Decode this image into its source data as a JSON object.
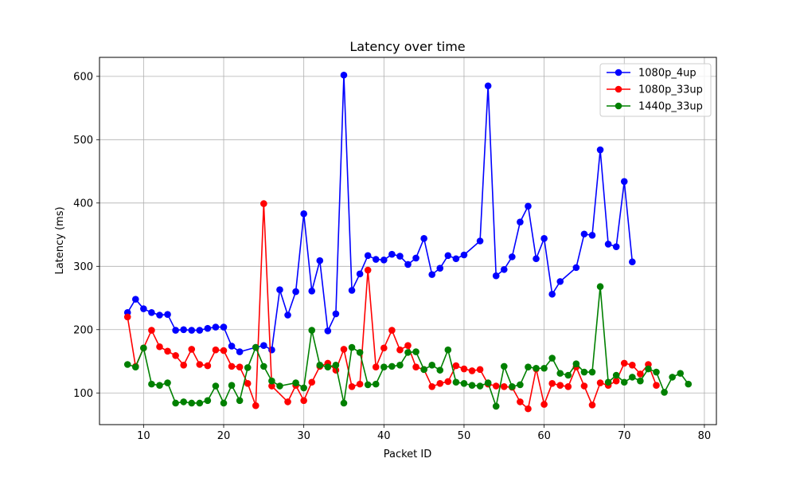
{
  "chart_data": {
    "type": "line",
    "title": "Latency over time",
    "xlabel": "Packet ID",
    "ylabel": "Latency (ms)",
    "xlim": [
      4.5,
      81.5
    ],
    "ylim": [
      50,
      630
    ],
    "xticks": [
      10,
      20,
      30,
      40,
      50,
      60,
      70,
      80
    ],
    "yticks": [
      100,
      200,
      300,
      400,
      500,
      600
    ],
    "grid": true,
    "legend_position": "top-right",
    "series": [
      {
        "name": "1080p_4up",
        "color": "#0000ff",
        "points": [
          [
            8,
            227
          ],
          [
            9,
            248
          ],
          [
            10,
            233
          ],
          [
            11,
            227
          ],
          [
            12,
            223
          ],
          [
            13,
            224
          ],
          [
            14,
            199
          ],
          [
            15,
            200
          ],
          [
            16,
            199
          ],
          [
            17,
            199
          ],
          [
            18,
            202
          ],
          [
            19,
            204
          ],
          [
            20,
            204
          ],
          [
            21,
            174
          ],
          [
            22,
            165
          ],
          [
            24,
            172
          ],
          [
            25,
            175
          ],
          [
            26,
            168
          ],
          [
            27,
            263
          ],
          [
            28,
            223
          ],
          [
            29,
            260
          ],
          [
            30,
            383
          ],
          [
            31,
            261
          ],
          [
            32,
            309
          ],
          [
            33,
            198
          ],
          [
            34,
            225
          ],
          [
            35,
            602
          ],
          [
            36,
            262
          ],
          [
            37,
            288
          ],
          [
            38,
            317
          ],
          [
            39,
            311
          ],
          [
            40,
            310
          ],
          [
            41,
            319
          ],
          [
            42,
            316
          ],
          [
            43,
            303
          ],
          [
            44,
            313
          ],
          [
            45,
            344
          ],
          [
            46,
            287
          ],
          [
            47,
            297
          ],
          [
            48,
            317
          ],
          [
            49,
            312
          ],
          [
            50,
            318
          ],
          [
            52,
            340
          ],
          [
            53,
            585
          ],
          [
            54,
            285
          ],
          [
            55,
            295
          ],
          [
            56,
            315
          ],
          [
            57,
            370
          ],
          [
            58,
            395
          ],
          [
            59,
            312
          ],
          [
            60,
            344
          ],
          [
            61,
            256
          ],
          [
            62,
            276
          ],
          [
            64,
            298
          ],
          [
            65,
            351
          ],
          [
            66,
            349
          ],
          [
            67,
            484
          ],
          [
            68,
            335
          ],
          [
            69,
            331
          ],
          [
            70,
            434
          ],
          [
            71,
            307
          ]
        ]
      },
      {
        "name": "1080p_33up",
        "color": "#ff0000",
        "points": [
          [
            8,
            220
          ],
          [
            9,
            142
          ],
          [
            10,
            171
          ],
          [
            11,
            199
          ],
          [
            12,
            173
          ],
          [
            13,
            166
          ],
          [
            14,
            159
          ],
          [
            15,
            144
          ],
          [
            16,
            169
          ],
          [
            17,
            145
          ],
          [
            18,
            143
          ],
          [
            19,
            168
          ],
          [
            20,
            167
          ],
          [
            21,
            142
          ],
          [
            22,
            141
          ],
          [
            23,
            115
          ],
          [
            24,
            80
          ],
          [
            25,
            399
          ],
          [
            26,
            111
          ],
          [
            28,
            86
          ],
          [
            29,
            112
          ],
          [
            30,
            88
          ],
          [
            31,
            117
          ],
          [
            32,
            142
          ],
          [
            33,
            147
          ],
          [
            34,
            136
          ],
          [
            35,
            169
          ],
          [
            36,
            110
          ],
          [
            37,
            114
          ],
          [
            38,
            294
          ],
          [
            39,
            141
          ],
          [
            40,
            171
          ],
          [
            41,
            199
          ],
          [
            42,
            168
          ],
          [
            43,
            175
          ],
          [
            44,
            141
          ],
          [
            45,
            137
          ],
          [
            46,
            110
          ],
          [
            47,
            115
          ],
          [
            48,
            118
          ],
          [
            49,
            143
          ],
          [
            50,
            138
          ],
          [
            51,
            135
          ],
          [
            52,
            137
          ],
          [
            53,
            114
          ],
          [
            54,
            111
          ],
          [
            55,
            110
          ],
          [
            56,
            109
          ],
          [
            57,
            86
          ],
          [
            58,
            75
          ],
          [
            59,
            138
          ],
          [
            60,
            82
          ],
          [
            61,
            115
          ],
          [
            62,
            112
          ],
          [
            63,
            110
          ],
          [
            64,
            141
          ],
          [
            65,
            111
          ],
          [
            66,
            81
          ],
          [
            67,
            116
          ],
          [
            68,
            112
          ],
          [
            69,
            119
          ],
          [
            70,
            147
          ],
          [
            71,
            144
          ],
          [
            72,
            130
          ],
          [
            73,
            145
          ],
          [
            74,
            112
          ]
        ]
      },
      {
        "name": "1440p_33up",
        "color": "#008000",
        "points": [
          [
            8,
            145
          ],
          [
            9,
            141
          ],
          [
            10,
            171
          ],
          [
            11,
            114
          ],
          [
            12,
            112
          ],
          [
            13,
            116
          ],
          [
            14,
            84
          ],
          [
            15,
            86
          ],
          [
            16,
            84
          ],
          [
            17,
            84
          ],
          [
            18,
            88
          ],
          [
            19,
            111
          ],
          [
            20,
            84
          ],
          [
            21,
            112
          ],
          [
            22,
            88
          ],
          [
            23,
            140
          ],
          [
            24,
            172
          ],
          [
            25,
            142
          ],
          [
            26,
            119
          ],
          [
            27,
            111
          ],
          [
            29,
            116
          ],
          [
            30,
            108
          ],
          [
            31,
            199
          ],
          [
            32,
            144
          ],
          [
            33,
            141
          ],
          [
            34,
            144
          ],
          [
            35,
            84
          ],
          [
            36,
            172
          ],
          [
            37,
            164
          ],
          [
            38,
            113
          ],
          [
            39,
            114
          ],
          [
            40,
            141
          ],
          [
            41,
            142
          ],
          [
            42,
            144
          ],
          [
            43,
            164
          ],
          [
            44,
            165
          ],
          [
            45,
            137
          ],
          [
            46,
            144
          ],
          [
            47,
            136
          ],
          [
            48,
            168
          ],
          [
            49,
            117
          ],
          [
            50,
            115
          ],
          [
            51,
            112
          ],
          [
            52,
            111
          ],
          [
            53,
            116
          ],
          [
            54,
            79
          ],
          [
            55,
            142
          ],
          [
            56,
            110
          ],
          [
            57,
            113
          ],
          [
            58,
            141
          ],
          [
            59,
            139
          ],
          [
            60,
            139
          ],
          [
            61,
            155
          ],
          [
            62,
            131
          ],
          [
            63,
            128
          ],
          [
            64,
            146
          ],
          [
            65,
            133
          ],
          [
            66,
            133
          ],
          [
            67,
            268
          ],
          [
            68,
            117
          ],
          [
            69,
            128
          ],
          [
            70,
            117
          ],
          [
            71,
            125
          ],
          [
            72,
            119
          ],
          [
            73,
            138
          ],
          [
            74,
            133
          ],
          [
            75,
            101
          ],
          [
            76,
            125
          ],
          [
            77,
            131
          ],
          [
            78,
            114
          ]
        ]
      }
    ]
  }
}
